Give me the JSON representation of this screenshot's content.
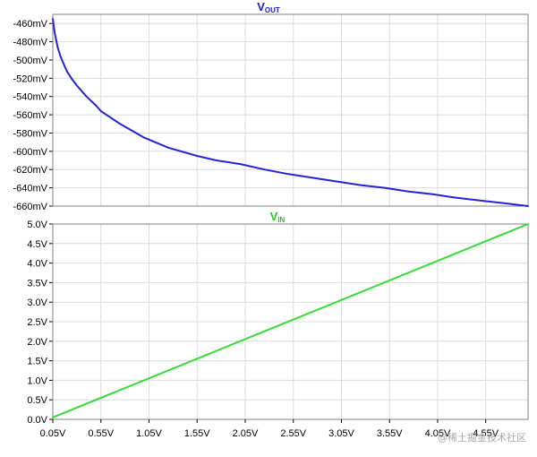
{
  "chart_data": [
    {
      "type": "line",
      "title_main": "V",
      "title_sub": "OUT",
      "title_color": "#1a1acc",
      "line_color": "#2424d6",
      "ylim": [
        -660,
        -450
      ],
      "y_ticks": [
        -460,
        -480,
        -500,
        -520,
        -540,
        -560,
        -580,
        -600,
        -620,
        -640,
        -660
      ],
      "y_tick_labels": [
        "-460mV",
        "-480mV",
        "-500mV",
        "-520mV",
        "-540mV",
        "-560mV",
        "-580mV",
        "-600mV",
        "-620mV",
        "-640mV",
        "-660mV"
      ],
      "xlim": [
        0.05,
        4.99
      ],
      "grid": true,
      "series": [
        {
          "x": [
            0.05,
            0.07,
            0.1,
            0.13,
            0.17,
            0.2,
            0.25,
            0.3,
            0.4,
            0.5,
            0.55,
            0.75,
            1.0,
            1.25,
            1.55,
            1.75,
            2.0,
            2.25,
            2.5,
            2.75,
            3.0,
            3.25,
            3.5,
            3.75,
            4.0,
            4.25,
            4.5,
            4.75,
            4.99
          ],
          "y": [
            -455,
            -470,
            -486,
            -496,
            -506,
            -513,
            -521,
            -528,
            -540,
            -550,
            -556,
            -570,
            -585,
            -596,
            -605,
            -610,
            -614,
            -620,
            -625,
            -629,
            -633,
            -637,
            -640,
            -644,
            -647,
            -651,
            -654,
            -657,
            -660
          ]
        }
      ]
    },
    {
      "type": "line",
      "title_main": "V",
      "title_sub": "IN",
      "title_color": "#22cc22",
      "line_color": "#33dd33",
      "ylim": [
        0,
        5
      ],
      "y_ticks": [
        0,
        0.5,
        1,
        1.5,
        2,
        2.5,
        3,
        3.5,
        4,
        4.5,
        5
      ],
      "y_tick_labels": [
        "0.0V",
        "0.5V",
        "1.0V",
        "1.5V",
        "2.0V",
        "2.5V",
        "3.0V",
        "3.5V",
        "4.0V",
        "4.5V",
        "5.0V"
      ],
      "xlim": [
        0.05,
        4.99
      ],
      "grid": true,
      "series": [
        {
          "x": [
            0.05,
            4.99
          ],
          "y": [
            0.05,
            5.0
          ]
        }
      ]
    }
  ],
  "x_axis": {
    "ticks": [
      0.05,
      0.55,
      1.05,
      1.55,
      2.05,
      2.55,
      3.05,
      3.55,
      4.05,
      4.55
    ],
    "tick_labels": [
      "0.05V",
      "0.55V",
      "1.05V",
      "1.55V",
      "2.05V",
      "2.55V",
      "3.05V",
      "3.55V",
      "4.05V",
      "4.55V"
    ]
  },
  "watermark": "@稀土掘金技术社区"
}
